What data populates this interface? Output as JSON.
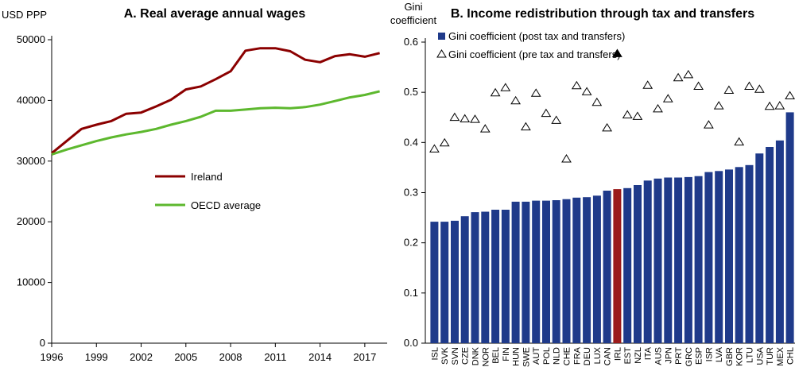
{
  "colors": {
    "ireland_line": "#8B0000",
    "oecd_line": "#5DB82E",
    "bar": "#1F3A8A",
    "bar_highlight": "#9B1B1B",
    "axis": "#000000"
  },
  "chart_data": [
    {
      "type": "line",
      "title": "A. Real average annual wages",
      "ylabel": "USD PPP",
      "xlabel": "",
      "ylim": [
        0,
        50000
      ],
      "xlim": [
        1996,
        2018.5
      ],
      "yticks": [
        0,
        10000,
        20000,
        30000,
        40000,
        50000
      ],
      "yticklabels": [
        "0",
        "10000",
        "20000",
        "30000",
        "40000",
        "50000"
      ],
      "xticks": [
        1996,
        1999,
        2002,
        2005,
        2008,
        2011,
        2014,
        2017
      ],
      "xticklabels": [
        "1996",
        "1999",
        "2002",
        "2005",
        "2008",
        "2011",
        "2014",
        "2017"
      ],
      "grid": false,
      "legend": "inside-center",
      "x": [
        1996,
        1997,
        1998,
        1999,
        2000,
        2001,
        2002,
        2003,
        2004,
        2005,
        2006,
        2007,
        2008,
        2009,
        2010,
        2011,
        2012,
        2013,
        2014,
        2015,
        2016,
        2017,
        2018
      ],
      "series": [
        {
          "name": "Ireland",
          "color_key": "ireland_line",
          "values": [
            31300,
            33300,
            35300,
            36000,
            36600,
            37800,
            38000,
            39000,
            40100,
            41800,
            42300,
            43500,
            44800,
            48200,
            48600,
            48600,
            48100,
            46700,
            46300,
            47300,
            47600,
            47200,
            47800
          ]
        },
        {
          "name": "OECD average",
          "color_key": "oecd_line",
          "values": [
            31100,
            31900,
            32600,
            33300,
            33900,
            34400,
            34800,
            35300,
            36000,
            36600,
            37300,
            38300,
            38300,
            38500,
            38700,
            38800,
            38700,
            38900,
            39300,
            39900,
            40500,
            40900,
            41500
          ]
        }
      ]
    },
    {
      "type": "bar",
      "title": "B. Income redistribution through tax and transfers",
      "ylabel": "Gini coefficient",
      "xlabel": "",
      "ylim": [
        0,
        0.6
      ],
      "yticks": [
        0,
        0.1,
        0.2,
        0.3,
        0.4,
        0.5,
        0.6
      ],
      "yticklabels": [
        "0.0",
        "0.1",
        "0.2",
        "0.3",
        "0.4",
        "0.5",
        "0.6"
      ],
      "grid": false,
      "legend": "top-left",
      "highlight": "IRL",
      "categories": [
        "ISL",
        "SVK",
        "SVN",
        "CZE",
        "DNK",
        "NOR",
        "BEL",
        "FIN",
        "HUN",
        "SWE",
        "AUT",
        "POL",
        "NLD",
        "CHE",
        "FRA",
        "DEU",
        "LUX",
        "CAN",
        "IRL",
        "EST",
        "NZL",
        "ITA",
        "AUS",
        "JPN",
        "PRT",
        "GRC",
        "ESP",
        "ISR",
        "LVA",
        "GBR",
        "KOR",
        "LTU",
        "USA",
        "TUR",
        "MEX",
        "CHL"
      ],
      "series": [
        {
          "name": "Gini coefficient (post tax and transfers)",
          "kind": "bar",
          "values": [
            0.242,
            0.242,
            0.244,
            0.253,
            0.261,
            0.262,
            0.266,
            0.266,
            0.282,
            0.282,
            0.284,
            0.284,
            0.285,
            0.287,
            0.29,
            0.291,
            0.294,
            0.304,
            0.307,
            0.309,
            0.315,
            0.324,
            0.328,
            0.33,
            0.33,
            0.331,
            0.333,
            0.341,
            0.343,
            0.346,
            0.351,
            0.355,
            0.378,
            0.391,
            0.404,
            0.46
          ]
        },
        {
          "name": "Gini coefficient (pre tax and transfers)",
          "kind": "marker",
          "values": [
            0.388,
            0.4,
            0.451,
            0.448,
            0.447,
            0.428,
            0.5,
            0.51,
            0.484,
            0.432,
            0.499,
            0.459,
            0.445,
            0.368,
            0.514,
            0.502,
            0.481,
            0.43,
            0.578,
            0.456,
            0.453,
            0.515,
            0.468,
            0.488,
            0.53,
            0.536,
            0.513,
            0.436,
            0.474,
            0.505,
            0.402,
            0.513,
            0.507,
            0.473,
            0.474,
            0.494
          ]
        }
      ]
    }
  ]
}
